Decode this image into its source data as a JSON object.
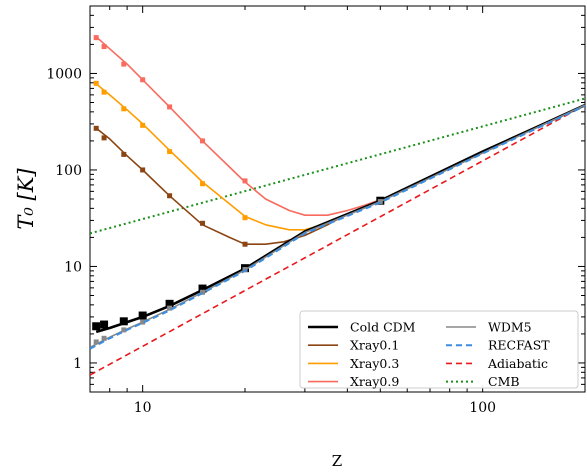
{
  "chart_data": {
    "type": "line",
    "xlabel": "Z",
    "ylabel": "T₀ [K]",
    "xscale": "log",
    "yscale": "log",
    "xlim": [
      7.0,
      200
    ],
    "ylim": [
      0.5,
      5000
    ],
    "xticks": [
      {
        "value": 10,
        "label": "10"
      },
      {
        "value": 100,
        "label": "100"
      }
    ],
    "yticks": [
      {
        "value": 1,
        "label": "1"
      },
      {
        "value": 10,
        "label": "10"
      },
      {
        "value": 100,
        "label": "100"
      },
      {
        "value": 1000,
        "label": "1000"
      }
    ],
    "legend_position": "bottom-right",
    "legend_columns": 2,
    "series": [
      {
        "name": "Cold CDM",
        "color": "#000000",
        "style": "solid",
        "width": 2.6,
        "x": [
          7.3,
          8,
          9,
          10,
          12,
          15,
          20,
          30,
          50,
          100,
          200
        ],
        "y": [
          2.1,
          2.3,
          2.65,
          3.0,
          3.9,
          5.7,
          9.5,
          23,
          48,
          155,
          470
        ],
        "markers": {
          "shape": "square",
          "size": 8,
          "x": [
            7.3,
            7.7,
            8.8,
            10,
            12,
            15,
            20,
            50
          ],
          "y": [
            2.4,
            2.5,
            2.7,
            3.1,
            4.1,
            5.9,
            9.6,
            48
          ]
        }
      },
      {
        "name": "Xray0.1",
        "color": "#8b4513",
        "style": "solid",
        "width": 1.6,
        "x": [
          7.3,
          8,
          9,
          10,
          12,
          15,
          18,
          20,
          23,
          26,
          30,
          35,
          40,
          50
        ],
        "y": [
          270,
          210,
          140,
          100,
          54,
          27,
          20,
          17,
          17,
          18,
          21,
          27,
          35,
          48
        ],
        "markers": {
          "shape": "square",
          "size": 5,
          "x": [
            7.3,
            7.7,
            8.8,
            10,
            12,
            15,
            20,
            50
          ],
          "y": [
            270,
            215,
            145,
            100,
            54,
            28,
            17,
            48
          ]
        }
      },
      {
        "name": "Xray0.3",
        "color": "#ff9d00",
        "style": "solid",
        "width": 1.6,
        "x": [
          7.3,
          8,
          9,
          10,
          12,
          15,
          20,
          23,
          27,
          30,
          35,
          40,
          50
        ],
        "y": [
          780,
          600,
          420,
          300,
          160,
          75,
          33,
          27,
          24,
          24,
          28,
          35,
          48
        ],
        "markers": {
          "shape": "square",
          "size": 5,
          "x": [
            7.3,
            7.7,
            8.8,
            10,
            12,
            15,
            20,
            50
          ],
          "y": [
            790,
            640,
            430,
            290,
            155,
            72,
            32,
            48
          ]
        }
      },
      {
        "name": "Xray0.9",
        "color": "#f86b5e",
        "style": "solid",
        "width": 1.6,
        "x": [
          7.3,
          8,
          9,
          10,
          12,
          15,
          20,
          23,
          27,
          30,
          35,
          40,
          45,
          50
        ],
        "y": [
          2400,
          1800,
          1250,
          860,
          450,
          200,
          75,
          50,
          38,
          34,
          34,
          38,
          43,
          49
        ],
        "markers": {
          "shape": "square",
          "size": 5,
          "x": [
            7.3,
            7.7,
            8.8,
            10,
            12,
            15,
            20,
            50
          ],
          "y": [
            2350,
            1900,
            1250,
            860,
            450,
            200,
            77,
            49
          ]
        }
      },
      {
        "name": "WDM5",
        "color": "#888888",
        "style": "solid",
        "width": 1.6,
        "x": [
          7.0,
          8,
          9,
          10,
          12,
          15,
          20,
          30,
          50,
          100,
          200
        ],
        "y": [
          1.45,
          1.85,
          2.25,
          2.65,
          3.6,
          5.4,
          9.2,
          22.5,
          47,
          150,
          470
        ],
        "markers": {
          "shape": "square",
          "size": 5,
          "x": [
            7.3,
            7.7,
            8.8,
            10,
            12,
            15,
            20,
            50
          ],
          "y": [
            1.65,
            1.8,
            2.2,
            2.65,
            3.7,
            5.4,
            9.3,
            47
          ]
        }
      },
      {
        "name": "RECFAST",
        "color": "#3a8de0",
        "style": "dashed",
        "width": 2.0,
        "x": [
          7.0,
          8,
          9,
          10,
          12,
          15,
          20,
          30,
          50,
          100,
          200
        ],
        "y": [
          1.4,
          1.8,
          2.2,
          2.6,
          3.5,
          5.3,
          9.0,
          22,
          46,
          148,
          460
        ],
        "markers": null
      },
      {
        "name": "Adiabatic",
        "color": "#e8191c",
        "style": "dashed",
        "width": 1.6,
        "x": [
          7.0,
          200
        ],
        "y": [
          0.75,
          470
        ],
        "markers": null
      },
      {
        "name": "CMB",
        "color": "#1a8f1a",
        "style": "dotted",
        "width": 2.0,
        "x": [
          7.0,
          200
        ],
        "y": [
          22,
          550
        ],
        "markers": null
      }
    ],
    "legend_order": [
      "Cold CDM",
      "Xray0.1",
      "Xray0.3",
      "Xray0.9",
      "WDM5",
      "RECFAST",
      "Adiabatic",
      "CMB"
    ]
  }
}
